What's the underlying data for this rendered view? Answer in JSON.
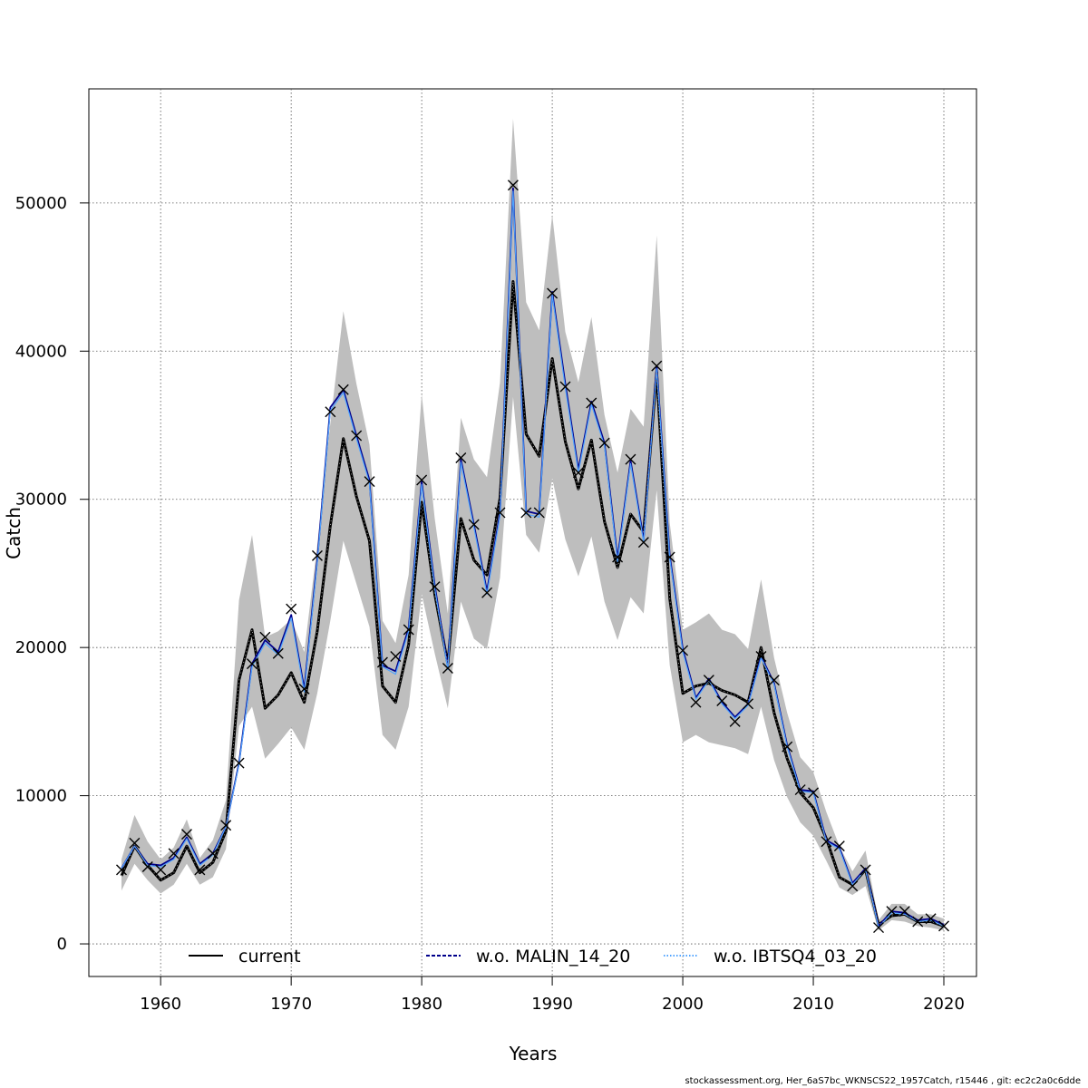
{
  "chart_data": {
    "type": "line",
    "xlabel": "Years",
    "ylabel": "Catch",
    "xlim": [
      1954.5,
      2022.5
    ],
    "ylim": [
      -2200,
      57700
    ],
    "xticks": [
      1960,
      1970,
      1980,
      1990,
      2000,
      2010,
      2020
    ],
    "yticks": [
      0,
      10000,
      20000,
      30000,
      40000,
      50000
    ],
    "grid": true,
    "legend_position": "bottom-inside",
    "years": [
      1957,
      1958,
      1959,
      1960,
      1961,
      1962,
      1963,
      1964,
      1965,
      1966,
      1967,
      1968,
      1969,
      1970,
      1971,
      1972,
      1973,
      1974,
      1975,
      1976,
      1977,
      1978,
      1979,
      1980,
      1981,
      1982,
      1983,
      1984,
      1985,
      1986,
      1987,
      1988,
      1989,
      1990,
      1991,
      1992,
      1993,
      1994,
      1995,
      1996,
      1997,
      1998,
      1999,
      2000,
      2001,
      2002,
      2003,
      2004,
      2005,
      2006,
      2007,
      2008,
      2009,
      2010,
      2011,
      2012,
      2013,
      2014,
      2015,
      2016,
      2017,
      2018,
      2019,
      2020
    ],
    "band_upper": [
      5700,
      8700,
      6900,
      5700,
      6500,
      8400,
      5800,
      7000,
      9700,
      23200,
      27600,
      20700,
      21100,
      21900,
      19700,
      26900,
      35100,
      42700,
      37800,
      33700,
      21800,
      20300,
      24900,
      37100,
      28700,
      22300,
      35500,
      32700,
      31500,
      37900,
      55700,
      43300,
      41400,
      49200,
      41300,
      37900,
      42300,
      35700,
      31800,
      36100,
      34900,
      47800,
      28400,
      21200,
      21700,
      22300,
      21200,
      20900,
      19900,
      24600,
      19300,
      15600,
      12600,
      11600,
      8900,
      6600,
      4900,
      6300,
      1600,
      2700,
      2700,
      2000,
      2000,
      1700
    ],
    "band_lower": [
      3600,
      5400,
      4300,
      3400,
      4000,
      5400,
      4000,
      4500,
      6400,
      14700,
      16000,
      12500,
      13500,
      14600,
      13100,
      16900,
      21800,
      27200,
      24300,
      21400,
      14100,
      13100,
      16000,
      23600,
      19600,
      15900,
      23100,
      20600,
      19900,
      24700,
      36900,
      27600,
      26400,
      31400,
      27300,
      24800,
      27500,
      23100,
      20500,
      23400,
      22300,
      30600,
      18800,
      13600,
      14100,
      13600,
      13400,
      13200,
      12800,
      16000,
      12400,
      9900,
      8200,
      7300,
      5600,
      3800,
      3300,
      3900,
      900,
      1600,
      1500,
      1200,
      1100,
      900
    ],
    "series": [
      {
        "name": "current",
        "color": "#000000",
        "values": [
          4600,
          6600,
          5300,
          4300,
          4800,
          6600,
          4800,
          5500,
          7600,
          17800,
          21200,
          15900,
          16800,
          18300,
          16300,
          21100,
          28200,
          34100,
          30200,
          27200,
          17400,
          16300,
          20200,
          29800,
          23600,
          18900,
          28700,
          25900,
          24900,
          30100,
          44700,
          34400,
          32900,
          39500,
          33900,
          30700,
          34000,
          28500,
          25400,
          29000,
          27800,
          38600,
          23300,
          16900,
          17400,
          17600,
          17100,
          16800,
          16300,
          20000,
          15600,
          12500,
          10200,
          9200,
          7100,
          4500,
          4000,
          5000,
          1300,
          1900,
          2000,
          1500,
          1500,
          1200
        ]
      },
      {
        "name": "w.o. MALIN_14_20",
        "color": "#00008b",
        "values": [
          5100,
          6600,
          5400,
          5300,
          5800,
          7200,
          5400,
          6100,
          7900,
          12200,
          18900,
          20500,
          19700,
          22200,
          17200,
          25900,
          36200,
          37400,
          34300,
          31300,
          18800,
          18400,
          21300,
          31200,
          24200,
          18700,
          32700,
          28300,
          23800,
          29100,
          51000,
          29200,
          29000,
          44000,
          37800,
          32000,
          36600,
          33800,
          26000,
          32600,
          27300,
          39000,
          26200,
          19900,
          16600,
          17900,
          16300,
          15300,
          16200,
          19400,
          17600,
          13400,
          10400,
          10300,
          7000,
          6500,
          4100,
          5100,
          1200,
          2200,
          2100,
          1600,
          1700,
          1300
        ]
      },
      {
        "name": "w.o. IBTSQ4_03_20",
        "color": "#4fa3ff",
        "values": [
          5100,
          6600,
          5300,
          5200,
          5700,
          7100,
          5300,
          6000,
          7900,
          12100,
          18700,
          20300,
          19500,
          22000,
          17000,
          25700,
          36000,
          37200,
          34100,
          31100,
          18700,
          18200,
          21100,
          31000,
          24000,
          18500,
          32500,
          28100,
          23600,
          28900,
          50800,
          29000,
          28800,
          43800,
          37500,
          31800,
          36400,
          33600,
          25800,
          32400,
          27100,
          38800,
          26000,
          19700,
          16500,
          17800,
          16200,
          15200,
          16100,
          19300,
          17500,
          13300,
          10300,
          10200,
          6900,
          6400,
          4000,
          5000,
          1100,
          2100,
          2000,
          1500,
          1600,
          1200
        ]
      }
    ],
    "observations": [
      5000,
      6800,
      5200,
      5000,
      6100,
      7400,
      5000,
      6100,
      8000,
      12200,
      18900,
      20700,
      19600,
      22600,
      17200,
      26200,
      35900,
      37400,
      34300,
      31200,
      19000,
      19400,
      21200,
      31300,
      24100,
      18600,
      32800,
      28300,
      23700,
      29100,
      51200,
      29100,
      29100,
      43900,
      37600,
      31800,
      36500,
      33800,
      26100,
      32700,
      27100,
      39000,
      26100,
      19800,
      16300,
      17800,
      16400,
      15000,
      16200,
      19400,
      17800,
      13300,
      10400,
      10200,
      6900,
      6600,
      3900,
      5000,
      1100,
      2200,
      2200,
      1500,
      1700,
      1200
    ],
    "legend": [
      {
        "label": "current",
        "style": "solid"
      },
      {
        "label": "w.o. MALIN_14_20",
        "style": "dashed"
      },
      {
        "label": "w.o. IBTSQ4_03_20",
        "style": "dotted"
      }
    ]
  },
  "footer": "stockassessment.org, Her_6aS7bc_WKNSCS22_1957Catch, r15446 , git: ec2c2a0c6dde"
}
